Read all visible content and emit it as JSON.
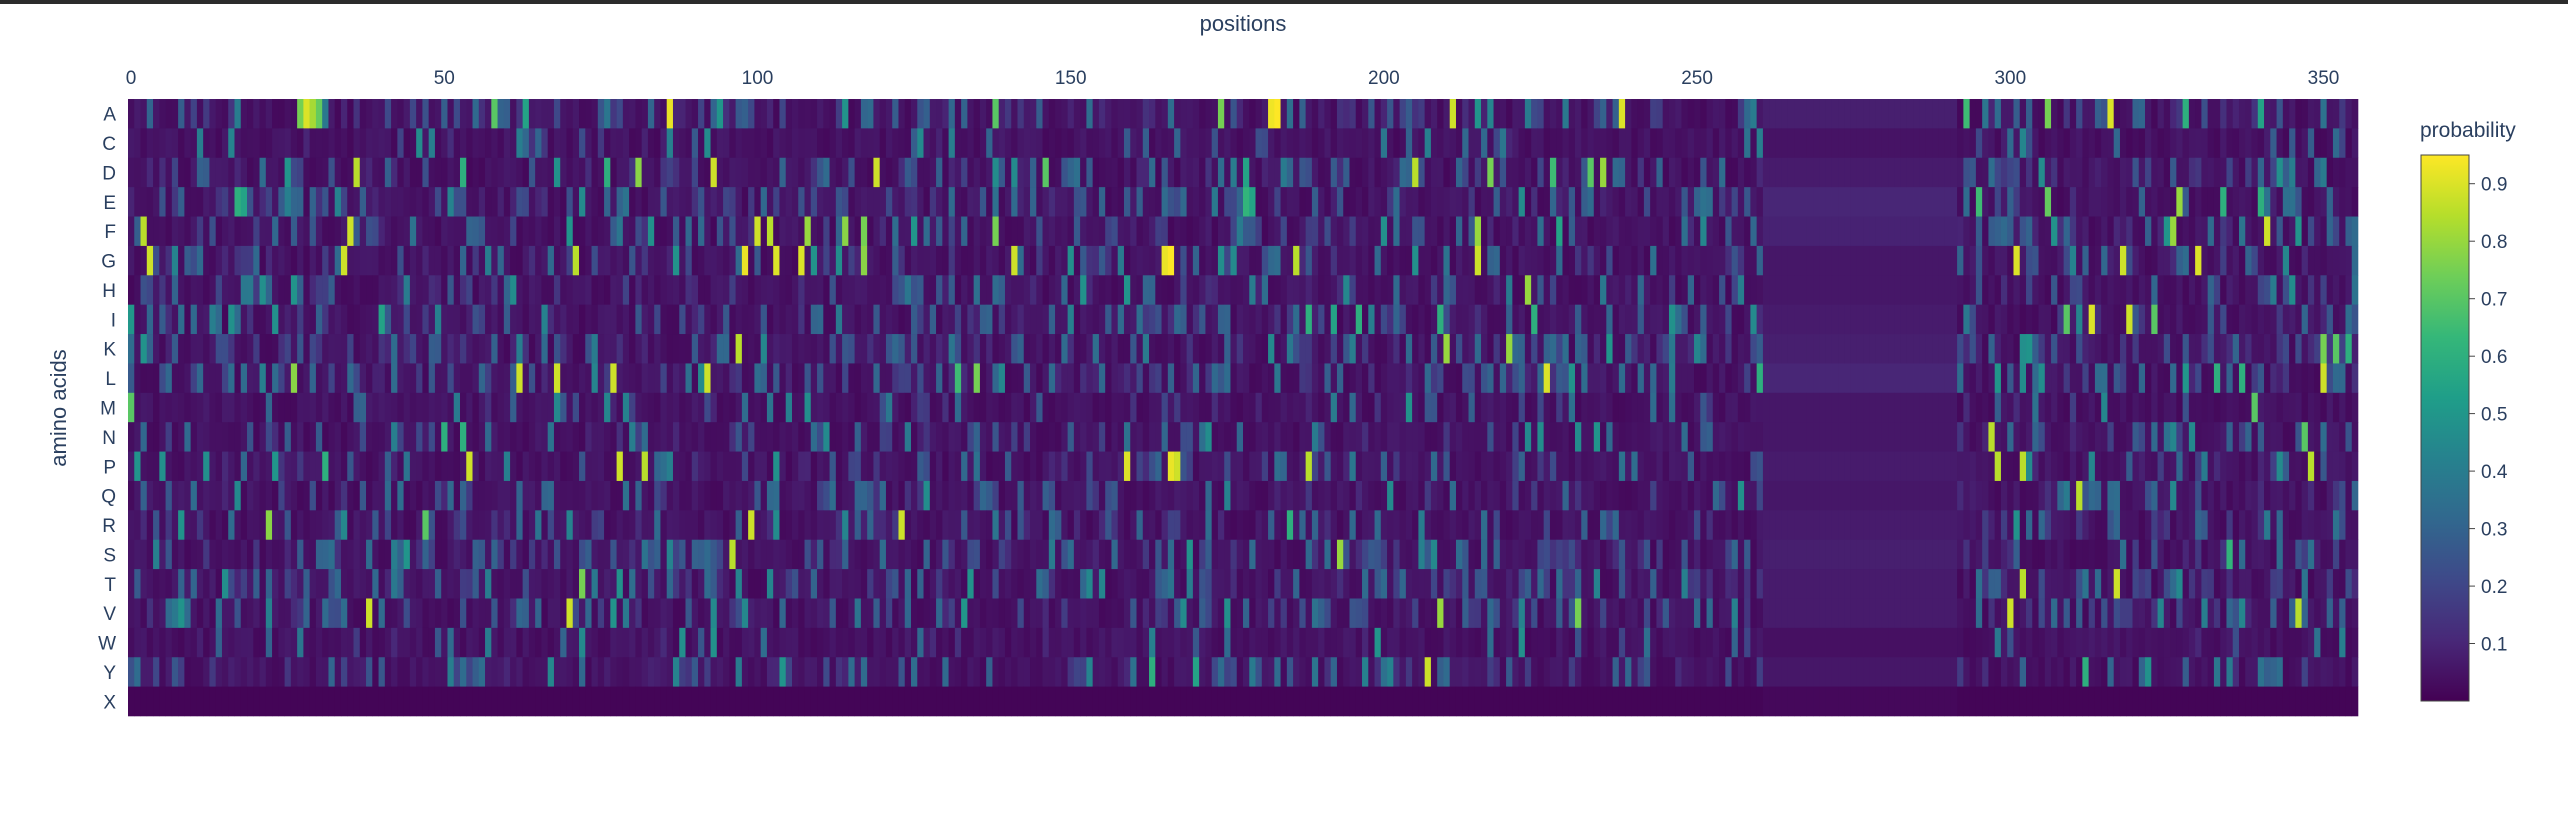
{
  "chart_data": {
    "type": "heatmap",
    "title": "",
    "xlabel": "positions",
    "ylabel": "amino acids",
    "x_range": [
      0,
      355
    ],
    "x_ticks": [
      0,
      50,
      100,
      150,
      200,
      250,
      300,
      350
    ],
    "rows": [
      "A",
      "C",
      "D",
      "E",
      "F",
      "G",
      "H",
      "I",
      "K",
      "L",
      "M",
      "N",
      "P",
      "Q",
      "R",
      "S",
      "T",
      "V",
      "W",
      "Y",
      "X"
    ],
    "colorbar": {
      "title": "probability",
      "min": 0.0,
      "max": 0.95,
      "ticks": [
        0.1,
        0.2,
        0.3,
        0.4,
        0.5,
        0.6,
        0.7,
        0.8,
        0.9
      ],
      "colorscale": [
        "#440154",
        "#482878",
        "#3e4989",
        "#31688e",
        "#26828e",
        "#1f9e89",
        "#35b779",
        "#6ece58",
        "#b5de2b",
        "#fde725"
      ]
    },
    "gap_region": {
      "start": 261,
      "end": 291,
      "row_values": [
        0.08,
        0.05,
        0.07,
        0.1,
        0.09,
        0.06,
        0.06,
        0.07,
        0.08,
        0.1,
        0.06,
        0.06,
        0.07,
        0.06,
        0.07,
        0.08,
        0.07,
        0.07,
        0.04,
        0.06,
        0.02
      ]
    },
    "background_value": 0.03,
    "high_cells": [
      {
        "row": "A",
        "pos": 27,
        "v": 0.75
      },
      {
        "row": "A",
        "pos": 28,
        "v": 0.9
      },
      {
        "row": "A",
        "pos": 29,
        "v": 0.82
      },
      {
        "row": "A",
        "pos": 30,
        "v": 0.72
      },
      {
        "row": "A",
        "pos": 58,
        "v": 0.7
      },
      {
        "row": "A",
        "pos": 63,
        "v": 0.55
      },
      {
        "row": "A",
        "pos": 86,
        "v": 0.92
      },
      {
        "row": "A",
        "pos": 138,
        "v": 0.7
      },
      {
        "row": "A",
        "pos": 174,
        "v": 0.75
      },
      {
        "row": "A",
        "pos": 182,
        "v": 0.93
      },
      {
        "row": "A",
        "pos": 183,
        "v": 0.95
      },
      {
        "row": "A",
        "pos": 211,
        "v": 0.88
      },
      {
        "row": "A",
        "pos": 238,
        "v": 0.9
      },
      {
        "row": "A",
        "pos": 293,
        "v": 0.65
      },
      {
        "row": "A",
        "pos": 306,
        "v": 0.75
      },
      {
        "row": "A",
        "pos": 316,
        "v": 0.9
      },
      {
        "row": "A",
        "pos": 328,
        "v": 0.6
      },
      {
        "row": "A",
        "pos": 340,
        "v": 0.55
      },
      {
        "row": "D",
        "pos": 36,
        "v": 0.85
      },
      {
        "row": "D",
        "pos": 53,
        "v": 0.6
      },
      {
        "row": "D",
        "pos": 76,
        "v": 0.6
      },
      {
        "row": "D",
        "pos": 81,
        "v": 0.78
      },
      {
        "row": "D",
        "pos": 93,
        "v": 0.88
      },
      {
        "row": "D",
        "pos": 119,
        "v": 0.88
      },
      {
        "row": "D",
        "pos": 146,
        "v": 0.7
      },
      {
        "row": "D",
        "pos": 178,
        "v": 0.55
      },
      {
        "row": "D",
        "pos": 205,
        "v": 0.85
      },
      {
        "row": "D",
        "pos": 217,
        "v": 0.75
      },
      {
        "row": "D",
        "pos": 227,
        "v": 0.65
      },
      {
        "row": "D",
        "pos": 233,
        "v": 0.7
      },
      {
        "row": "D",
        "pos": 235,
        "v": 0.8
      },
      {
        "row": "E",
        "pos": 17,
        "v": 0.6
      },
      {
        "row": "E",
        "pos": 18,
        "v": 0.55
      },
      {
        "row": "E",
        "pos": 178,
        "v": 0.62
      },
      {
        "row": "E",
        "pos": 179,
        "v": 0.55
      },
      {
        "row": "E",
        "pos": 295,
        "v": 0.65
      },
      {
        "row": "E",
        "pos": 306,
        "v": 0.72
      },
      {
        "row": "E",
        "pos": 327,
        "v": 0.8
      },
      {
        "row": "E",
        "pos": 334,
        "v": 0.6
      },
      {
        "row": "E",
        "pos": 340,
        "v": 0.6
      },
      {
        "row": "F",
        "pos": 2,
        "v": 0.85
      },
      {
        "row": "F",
        "pos": 35,
        "v": 0.88
      },
      {
        "row": "F",
        "pos": 100,
        "v": 0.88
      },
      {
        "row": "F",
        "pos": 102,
        "v": 0.85
      },
      {
        "row": "F",
        "pos": 108,
        "v": 0.8
      },
      {
        "row": "F",
        "pos": 114,
        "v": 0.78
      },
      {
        "row": "F",
        "pos": 117,
        "v": 0.75
      },
      {
        "row": "F",
        "pos": 138,
        "v": 0.75
      },
      {
        "row": "F",
        "pos": 215,
        "v": 0.8
      },
      {
        "row": "F",
        "pos": 228,
        "v": 0.55
      },
      {
        "row": "F",
        "pos": 326,
        "v": 0.8
      },
      {
        "row": "F",
        "pos": 341,
        "v": 0.88
      },
      {
        "row": "G",
        "pos": 3,
        "v": 0.88
      },
      {
        "row": "G",
        "pos": 34,
        "v": 0.88
      },
      {
        "row": "G",
        "pos": 71,
        "v": 0.85
      },
      {
        "row": "G",
        "pos": 98,
        "v": 0.92
      },
      {
        "row": "G",
        "pos": 103,
        "v": 0.9
      },
      {
        "row": "G",
        "pos": 107,
        "v": 0.9
      },
      {
        "row": "G",
        "pos": 117,
        "v": 0.78
      },
      {
        "row": "G",
        "pos": 141,
        "v": 0.88
      },
      {
        "row": "G",
        "pos": 165,
        "v": 0.92
      },
      {
        "row": "G",
        "pos": 166,
        "v": 0.95
      },
      {
        "row": "G",
        "pos": 186,
        "v": 0.85
      },
      {
        "row": "G",
        "pos": 215,
        "v": 0.88
      },
      {
        "row": "G",
        "pos": 301,
        "v": 0.9
      },
      {
        "row": "G",
        "pos": 318,
        "v": 0.88
      },
      {
        "row": "G",
        "pos": 330,
        "v": 0.9
      },
      {
        "row": "H",
        "pos": 223,
        "v": 0.8
      },
      {
        "row": "I",
        "pos": 0,
        "v": 0.5
      },
      {
        "row": "I",
        "pos": 40,
        "v": 0.55
      },
      {
        "row": "I",
        "pos": 188,
        "v": 0.6
      },
      {
        "row": "I",
        "pos": 192,
        "v": 0.55
      },
      {
        "row": "I",
        "pos": 196,
        "v": 0.6
      },
      {
        "row": "I",
        "pos": 209,
        "v": 0.6
      },
      {
        "row": "I",
        "pos": 224,
        "v": 0.6
      },
      {
        "row": "I",
        "pos": 309,
        "v": 0.7
      },
      {
        "row": "I",
        "pos": 313,
        "v": 0.9
      },
      {
        "row": "I",
        "pos": 319,
        "v": 0.88
      },
      {
        "row": "I",
        "pos": 323,
        "v": 0.7
      },
      {
        "row": "K",
        "pos": 97,
        "v": 0.85
      },
      {
        "row": "K",
        "pos": 210,
        "v": 0.8
      },
      {
        "row": "K",
        "pos": 220,
        "v": 0.8
      },
      {
        "row": "K",
        "pos": 350,
        "v": 0.75
      },
      {
        "row": "K",
        "pos": 352,
        "v": 0.7
      },
      {
        "row": "K",
        "pos": 354,
        "v": 0.6
      },
      {
        "row": "L",
        "pos": 26,
        "v": 0.78
      },
      {
        "row": "L",
        "pos": 62,
        "v": 0.88
      },
      {
        "row": "L",
        "pos": 68,
        "v": 0.88
      },
      {
        "row": "L",
        "pos": 77,
        "v": 0.88
      },
      {
        "row": "L",
        "pos": 92,
        "v": 0.88
      },
      {
        "row": "L",
        "pos": 132,
        "v": 0.65
      },
      {
        "row": "L",
        "pos": 135,
        "v": 0.75
      },
      {
        "row": "L",
        "pos": 226,
        "v": 0.9
      },
      {
        "row": "L",
        "pos": 260,
        "v": 0.6
      },
      {
        "row": "L",
        "pos": 333,
        "v": 0.6
      },
      {
        "row": "L",
        "pos": 337,
        "v": 0.6
      },
      {
        "row": "L",
        "pos": 350,
        "v": 0.88
      },
      {
        "row": "M",
        "pos": 0,
        "v": 0.7
      },
      {
        "row": "M",
        "pos": 339,
        "v": 0.7
      },
      {
        "row": "N",
        "pos": 50,
        "v": 0.6
      },
      {
        "row": "N",
        "pos": 53,
        "v": 0.6
      },
      {
        "row": "N",
        "pos": 297,
        "v": 0.85
      },
      {
        "row": "N",
        "pos": 347,
        "v": 0.7
      },
      {
        "row": "P",
        "pos": 31,
        "v": 0.6
      },
      {
        "row": "P",
        "pos": 54,
        "v": 0.88
      },
      {
        "row": "P",
        "pos": 78,
        "v": 0.88
      },
      {
        "row": "P",
        "pos": 82,
        "v": 0.85
      },
      {
        "row": "P",
        "pos": 159,
        "v": 0.9
      },
      {
        "row": "P",
        "pos": 166,
        "v": 0.92
      },
      {
        "row": "P",
        "pos": 167,
        "v": 0.88
      },
      {
        "row": "P",
        "pos": 188,
        "v": 0.85
      },
      {
        "row": "P",
        "pos": 298,
        "v": 0.85
      },
      {
        "row": "P",
        "pos": 302,
        "v": 0.85
      },
      {
        "row": "P",
        "pos": 348,
        "v": 0.85
      },
      {
        "row": "Q",
        "pos": 311,
        "v": 0.85
      },
      {
        "row": "R",
        "pos": 22,
        "v": 0.78
      },
      {
        "row": "R",
        "pos": 47,
        "v": 0.7
      },
      {
        "row": "R",
        "pos": 99,
        "v": 0.88
      },
      {
        "row": "R",
        "pos": 123,
        "v": 0.88
      },
      {
        "row": "R",
        "pos": 185,
        "v": 0.6
      },
      {
        "row": "S",
        "pos": 96,
        "v": 0.85
      },
      {
        "row": "S",
        "pos": 193,
        "v": 0.8
      },
      {
        "row": "S",
        "pos": 335,
        "v": 0.62
      },
      {
        "row": "T",
        "pos": 72,
        "v": 0.75
      },
      {
        "row": "T",
        "pos": 302,
        "v": 0.85
      },
      {
        "row": "T",
        "pos": 317,
        "v": 0.88
      },
      {
        "row": "V",
        "pos": 38,
        "v": 0.88
      },
      {
        "row": "V",
        "pos": 70,
        "v": 0.88
      },
      {
        "row": "V",
        "pos": 209,
        "v": 0.8
      },
      {
        "row": "V",
        "pos": 231,
        "v": 0.75
      },
      {
        "row": "V",
        "pos": 300,
        "v": 0.88
      },
      {
        "row": "V",
        "pos": 346,
        "v": 0.85
      },
      {
        "row": "Y",
        "pos": 207,
        "v": 0.88
      },
      {
        "row": "Y",
        "pos": 312,
        "v": 0.6
      },
      {
        "row": "Y",
        "pos": 163,
        "v": 0.6
      },
      {
        "row": "Y",
        "pos": 170,
        "v": 0.55
      }
    ]
  }
}
